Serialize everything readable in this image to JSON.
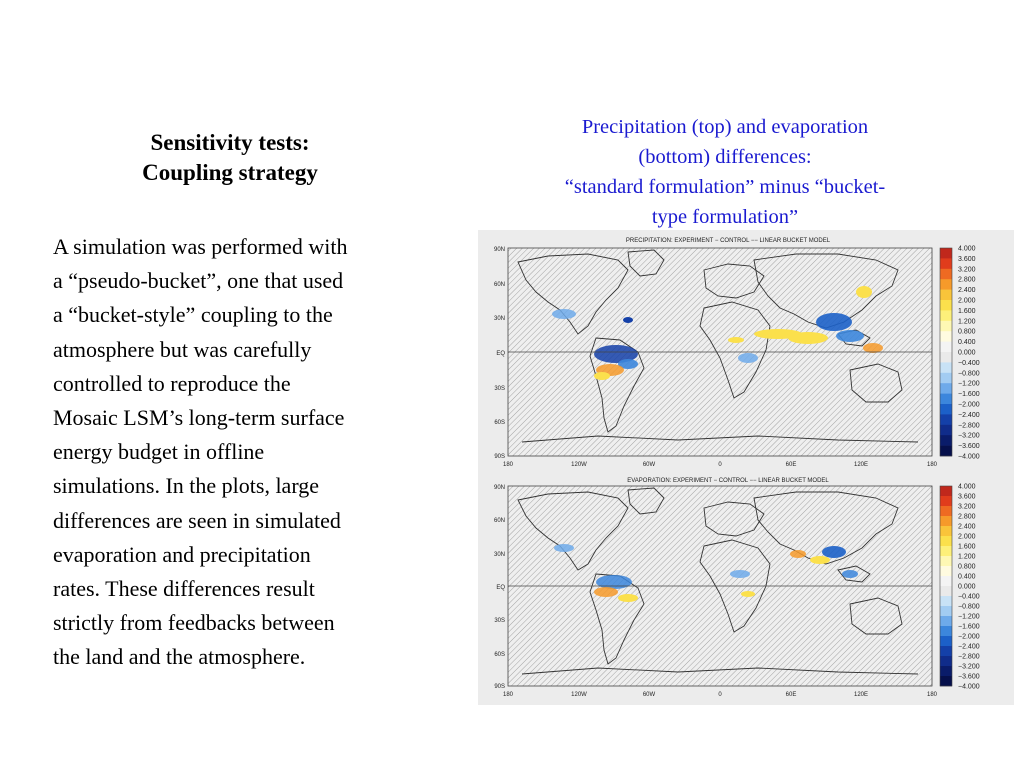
{
  "slide": {
    "heading_line1": "Sensitivity tests:",
    "heading_line2": "Coupling strategy",
    "body_lines": [
      "A simulation was performed with",
      "a “pseudo-bucket”, one that used",
      "a “bucket-style” coupling to the",
      "atmosphere but was carefully",
      "controlled to reproduce the",
      "Mosaic LSM’s long-term surface",
      "energy budget in offline",
      "simulations.  In the plots, large",
      "differences are seen in simulated",
      "evaporation and precipitation",
      "rates.  These differences result",
      "strictly from feedbacks between",
      "the land and the atmosphere."
    ],
    "caption_lines": [
      "Precipitation (top) and evaporation",
      "(bottom) differences:",
      "“standard formulation” minus “bucket-",
      "type formulation”"
    ],
    "caption_color": "#1a1ad0"
  },
  "maps": {
    "top": {
      "title": "PRECIPITATION: EXPERIMENT − CONTROL    −−    LINEAR BUCKET MODEL"
    },
    "bottom": {
      "title": "EVAPORATION: EXPERIMENT − CONTROL    −−    LINEAR BUCKET MODEL"
    },
    "lat_labels": [
      "90N",
      "60N",
      "30N",
      "EQ",
      "30S",
      "60S",
      "90S"
    ],
    "lon_labels": [
      "180",
      "120W",
      "60W",
      "0",
      "60E",
      "120E",
      "180"
    ],
    "colorbar_labels": [
      "4.000",
      "3.600",
      "3.200",
      "2.800",
      "2.400",
      "2.000",
      "1.600",
      "1.200",
      "0.800",
      "0.400",
      "0.000",
      "−0.400",
      "−0.800",
      "−1.200",
      "−1.600",
      "−2.000",
      "−2.400",
      "−2.800",
      "−3.200",
      "−3.600",
      "−4.000"
    ],
    "colorbar_colors": [
      "#c0281c",
      "#e03c1c",
      "#ee6a22",
      "#f69a2a",
      "#f9c43a",
      "#fbe04c",
      "#fdf07a",
      "#fef8b4",
      "#fffbe0",
      "#f4f4f4",
      "#eaeaea",
      "#c8e2f6",
      "#a2ccf2",
      "#6eaaea",
      "#3c86dc",
      "#1c60c8",
      "#1440a8",
      "#102c8a",
      "#0a1c6a",
      "#06104c"
    ]
  }
}
